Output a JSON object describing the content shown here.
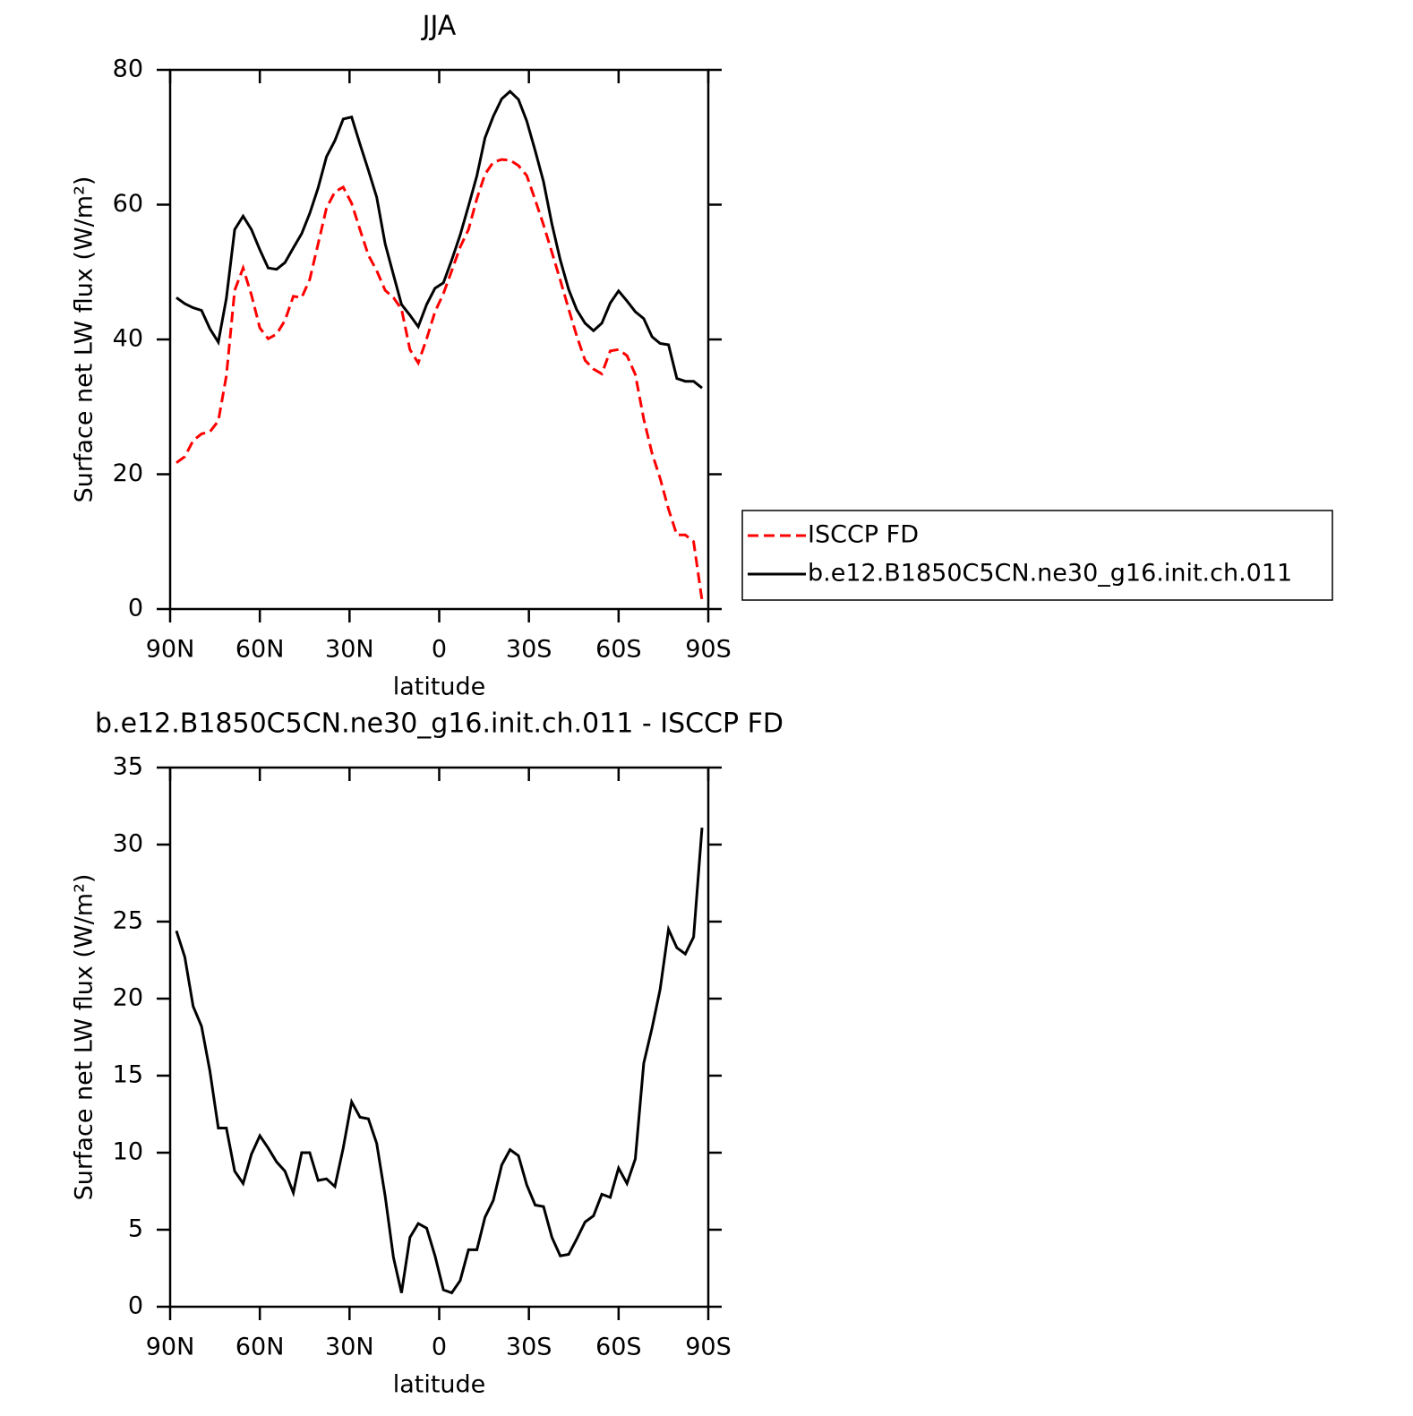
{
  "chart_data": [
    {
      "type": "line",
      "title": "JJA",
      "xlabel": "latitude",
      "ylabel": "Surface net LW flux (W/m²)",
      "x": [
        87.9,
        85.1,
        82.3,
        79.5,
        76.7,
        73.9,
        71.2,
        68.4,
        65.6,
        62.8,
        60.0,
        57.2,
        54.4,
        51.6,
        48.8,
        46.0,
        43.3,
        40.5,
        37.7,
        34.9,
        32.1,
        29.3,
        26.5,
        23.7,
        20.9,
        18.1,
        15.3,
        12.6,
        9.8,
        7.0,
        4.2,
        1.4,
        -1.4,
        -4.2,
        -7.0,
        -9.8,
        -12.6,
        -15.3,
        -18.1,
        -20.9,
        -23.7,
        -26.5,
        -29.3,
        -32.1,
        -34.9,
        -37.7,
        -40.5,
        -43.3,
        -46.0,
        -48.8,
        -51.6,
        -54.4,
        -57.2,
        -60.0,
        -62.8,
        -65.6,
        -68.4,
        -71.2,
        -73.9,
        -76.7,
        -79.5,
        -82.3,
        -85.1,
        -87.9
      ],
      "series": [
        {
          "name": "ISCCP FD",
          "color": "#ff0000",
          "dash": "dashed",
          "values": [
            21.7,
            22.6,
            25.0,
            26.0,
            26.3,
            27.9,
            34.6,
            47.3,
            50.6,
            46.6,
            41.7,
            40.1,
            40.8,
            42.8,
            46.4,
            46.2,
            48.9,
            54.2,
            59.5,
            61.9,
            62.6,
            60.2,
            56.3,
            52.5,
            50.2,
            47.3,
            46.2,
            44.5,
            38.5,
            36.5,
            40.1,
            44.1,
            46.8,
            50.2,
            53.7,
            56.3,
            60.9,
            64.5,
            66.3,
            66.7,
            66.6,
            65.8,
            64.3,
            60.7,
            57.0,
            52.9,
            48.8,
            44.5,
            40.5,
            36.9,
            35.6,
            34.9,
            38.3,
            38.5,
            37.6,
            34.8,
            28.2,
            23.1,
            19.4,
            14.8,
            11.0,
            11.0,
            10.0,
            1.3
          ]
        },
        {
          "name": "b.e12.B1850C5CN.ne30_g16.init.ch.011",
          "color": "#000000",
          "dash": "solid",
          "values": [
            46.2,
            45.3,
            44.7,
            44.3,
            41.6,
            39.6,
            46.1,
            56.3,
            58.3,
            56.3,
            53.3,
            50.6,
            50.4,
            51.4,
            53.6,
            55.7,
            58.7,
            62.5,
            67.1,
            69.5,
            72.7,
            73.0,
            69.0,
            65.1,
            61.1,
            54.2,
            49.6,
            45.2,
            43.6,
            41.9,
            45.2,
            47.6,
            48.4,
            51.8,
            55.5,
            59.8,
            64.3,
            69.9,
            73.1,
            75.7,
            76.8,
            75.6,
            72.4,
            68.0,
            63.4,
            57.1,
            51.8,
            47.4,
            44.4,
            42.4,
            41.3,
            42.4,
            45.4,
            47.2,
            45.7,
            44.1,
            43.1,
            40.4,
            39.4,
            39.2,
            34.2,
            33.8,
            33.8,
            32.8
          ]
        }
      ],
      "xlim": [
        90,
        -90
      ],
      "xticks": [
        {
          "value": 90,
          "label": "90N"
        },
        {
          "value": 60,
          "label": "60N"
        },
        {
          "value": 30,
          "label": "30N"
        },
        0,
        {
          "value": -30,
          "label": "30S"
        },
        {
          "value": -60,
          "label": "60S"
        },
        {
          "value": -90,
          "label": "90S"
        }
      ],
      "ylim": [
        0,
        80
      ],
      "yticks": [
        0,
        20,
        40,
        60,
        80
      ],
      "legend": "right"
    },
    {
      "type": "line",
      "title": "b.e12.B1850C5CN.ne30_g16.init.ch.011 - ISCCP FD",
      "xlabel": "latitude",
      "ylabel": "Surface net LW flux (W/m²)",
      "x": [
        87.9,
        85.1,
        82.3,
        79.5,
        76.7,
        73.9,
        71.2,
        68.4,
        65.6,
        62.8,
        60.0,
        57.2,
        54.4,
        51.6,
        48.8,
        46.0,
        43.3,
        40.5,
        37.7,
        34.9,
        32.1,
        29.3,
        26.5,
        23.7,
        20.9,
        18.1,
        15.3,
        12.6,
        9.8,
        7.0,
        4.2,
        1.4,
        -1.4,
        -4.2,
        -7.0,
        -9.8,
        -12.6,
        -15.3,
        -18.1,
        -20.9,
        -23.7,
        -26.5,
        -29.3,
        -32.1,
        -34.9,
        -37.7,
        -40.5,
        -43.3,
        -46.0,
        -48.8,
        -51.6,
        -54.4,
        -57.2,
        -60.0,
        -62.8,
        -65.6,
        -68.4,
        -71.2,
        -73.9,
        -76.7,
        -79.5,
        -82.3,
        -85.1,
        -87.9
      ],
      "values": [
        24.4,
        22.7,
        19.5,
        18.2,
        15.3,
        11.6,
        11.6,
        8.8,
        8.0,
        9.9,
        11.1,
        10.3,
        9.4,
        8.8,
        7.4,
        10.0,
        10.0,
        8.2,
        8.3,
        7.8,
        10.3,
        13.3,
        12.3,
        12.2,
        10.6,
        7.2,
        3.2,
        0.9,
        4.5,
        5.4,
        5.1,
        3.3,
        1.1,
        0.9,
        1.7,
        3.7,
        3.7,
        5.8,
        6.9,
        9.2,
        10.2,
        9.8,
        7.9,
        6.6,
        6.5,
        4.5,
        3.3,
        3.4,
        4.4,
        5.5,
        5.9,
        7.3,
        7.1,
        9.0,
        8.0,
        9.6,
        15.8,
        18.1,
        20.6,
        24.5,
        23.3,
        22.9,
        24.0,
        31.1
      ],
      "color": "#000000",
      "xlim": [
        90,
        -90
      ],
      "xticks": [
        {
          "value": 90,
          "label": "90N"
        },
        {
          "value": 60,
          "label": "60N"
        },
        {
          "value": 30,
          "label": "30N"
        },
        0,
        {
          "value": -30,
          "label": "30S"
        },
        {
          "value": -60,
          "label": "60S"
        },
        {
          "value": -90,
          "label": "90S"
        }
      ],
      "ylim": [
        0,
        35
      ],
      "yticks": [
        0,
        5,
        10,
        15,
        20,
        25,
        30,
        35
      ]
    }
  ]
}
